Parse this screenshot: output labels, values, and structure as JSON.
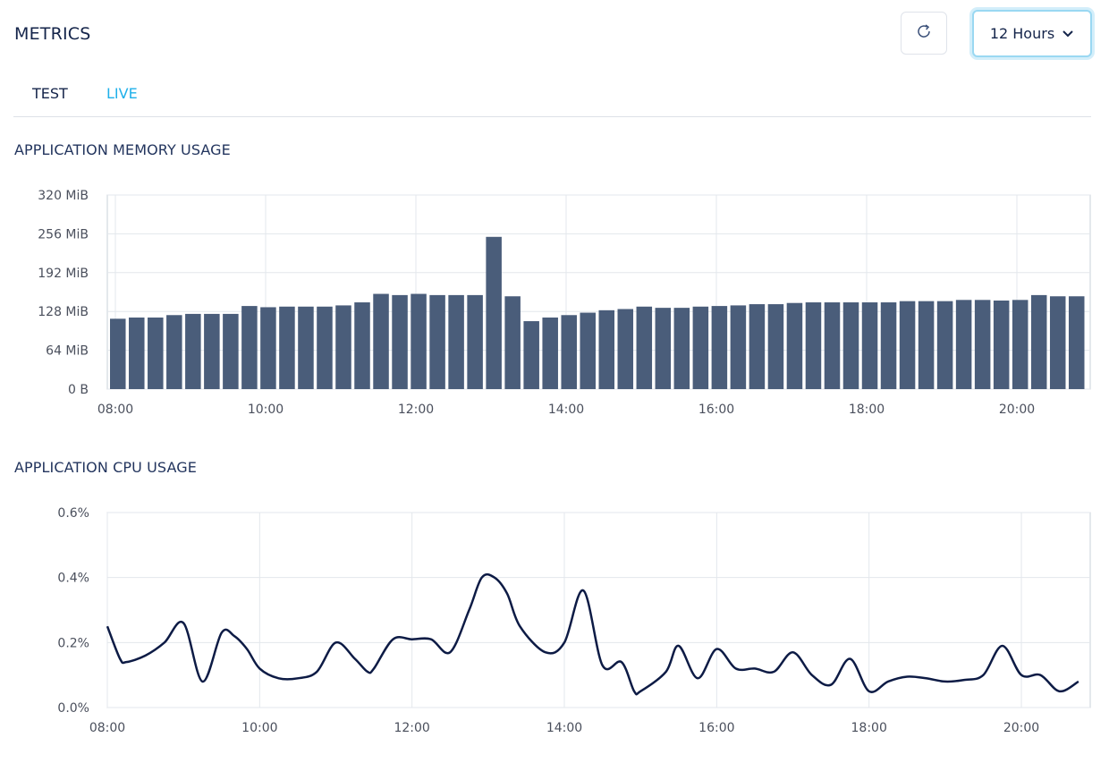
{
  "header": {
    "title": "METRICS",
    "range_label": "12 Hours"
  },
  "tabs": [
    {
      "label": "TEST"
    },
    {
      "label": "LIVE"
    }
  ],
  "colors": {
    "accent": "#1fb0ea",
    "bar": "#4a5d7a",
    "line": "#0d1b45"
  },
  "icons": {
    "refresh": "refresh-icon",
    "dropdown": "chevron-down-icon"
  },
  "chart_data": [
    {
      "type": "bar",
      "title": "APPLICATION MEMORY USAGE",
      "x_start": "08:00",
      "x_step_minutes": 15,
      "xticks": [
        "08:00",
        "10:00",
        "12:00",
        "14:00",
        "16:00",
        "18:00",
        "20:00"
      ],
      "yticks": [
        "320 MiB",
        "256 MiB",
        "192 MiB",
        "128 MiB",
        "64 MiB",
        "0 B"
      ],
      "ylim": [
        0,
        320
      ],
      "unit": "MiB",
      "grid": true,
      "values": [
        116,
        118,
        118,
        122,
        124,
        124,
        124,
        137,
        135,
        136,
        136,
        136,
        138,
        143,
        157,
        155,
        157,
        155,
        155,
        155,
        251,
        153,
        112,
        118,
        122,
        126,
        130,
        132,
        136,
        134,
        134,
        136,
        137,
        138,
        140,
        140,
        142,
        143,
        143,
        143,
        143,
        143,
        145,
        145,
        145,
        147,
        147,
        146,
        147,
        155,
        153,
        153
      ]
    },
    {
      "type": "line",
      "title": "APPLICATION CPU USAGE",
      "xticks": [
        "08:00",
        "10:00",
        "12:00",
        "14:00",
        "16:00",
        "18:00",
        "20:00"
      ],
      "yticks": [
        "0.6%",
        "0.4%",
        "0.2%",
        "0.0%"
      ],
      "ylim": [
        0,
        0.6
      ],
      "unit": "%",
      "grid": true,
      "x": [
        "08:00",
        "08:10",
        "08:15",
        "08:30",
        "08:45",
        "09:00",
        "09:15",
        "09:30",
        "09:40",
        "09:50",
        "10:00",
        "10:15",
        "10:30",
        "10:45",
        "11:00",
        "11:15",
        "11:25",
        "11:30",
        "11:45",
        "12:00",
        "12:15",
        "12:30",
        "12:45",
        "12:55",
        "13:05",
        "13:15",
        "13:25",
        "13:45",
        "14:00",
        "14:15",
        "14:30",
        "14:45",
        "14:55",
        "15:00",
        "15:20",
        "15:30",
        "15:45",
        "16:00",
        "16:15",
        "16:30",
        "16:45",
        "17:00",
        "17:15",
        "17:30",
        "17:45",
        "18:00",
        "18:15",
        "18:30",
        "18:45",
        "19:00",
        "19:15",
        "19:30",
        "19:45",
        "20:00",
        "20:15",
        "20:30",
        "20:45"
      ],
      "y": [
        0.25,
        0.15,
        0.14,
        0.16,
        0.2,
        0.26,
        0.08,
        0.23,
        0.22,
        0.18,
        0.12,
        0.09,
        0.09,
        0.11,
        0.2,
        0.15,
        0.11,
        0.12,
        0.21,
        0.21,
        0.21,
        0.17,
        0.3,
        0.4,
        0.4,
        0.35,
        0.25,
        0.17,
        0.2,
        0.36,
        0.13,
        0.14,
        0.05,
        0.05,
        0.11,
        0.19,
        0.09,
        0.18,
        0.12,
        0.12,
        0.11,
        0.17,
        0.1,
        0.07,
        0.15,
        0.05,
        0.08,
        0.095,
        0.09,
        0.08,
        0.085,
        0.1,
        0.19,
        0.1,
        0.1,
        0.05,
        0.08
      ]
    }
  ]
}
